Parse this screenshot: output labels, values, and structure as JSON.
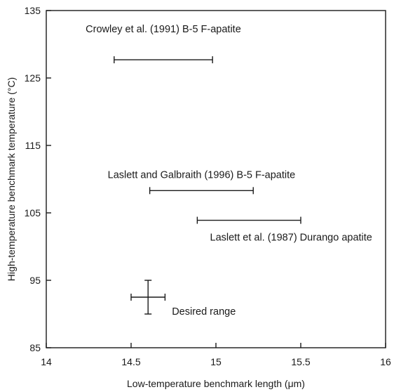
{
  "chart_data": {
    "type": "scatter",
    "title": "",
    "xlabel": "Low-temperature benchmark length (μm)",
    "ylabel": "High-temperature benchmark temperature (°C)",
    "xlim": [
      14,
      16
    ],
    "ylim": [
      85,
      135
    ],
    "xticks": [
      14,
      14.5,
      15,
      15.5,
      16
    ],
    "xtick_labels": [
      "14",
      "14.5",
      "15",
      "15.5",
      "16"
    ],
    "yticks": [
      85,
      95,
      105,
      115,
      125,
      135
    ],
    "ytick_labels": [
      "85",
      "95",
      "105",
      "115",
      "125",
      "135"
    ],
    "grid": false,
    "series": [
      {
        "name": "Crowley et al. (1991) B-5 F-apatite",
        "x_range": [
          14.4,
          14.98
        ],
        "y": 127.7
      },
      {
        "name": "Laslett and Galbraith (1996) B-5 F-apatite",
        "x_range": [
          14.61,
          15.22
        ],
        "y": 108.3
      },
      {
        "name": "Laslett et al. (1987) Durango apatite",
        "x_range": [
          14.89,
          15.5
        ],
        "y": 103.9
      },
      {
        "name": "Desired range",
        "x_range": [
          14.5,
          14.7
        ],
        "y_range": [
          90,
          95
        ],
        "x": 14.6,
        "y": 92.5
      }
    ]
  }
}
